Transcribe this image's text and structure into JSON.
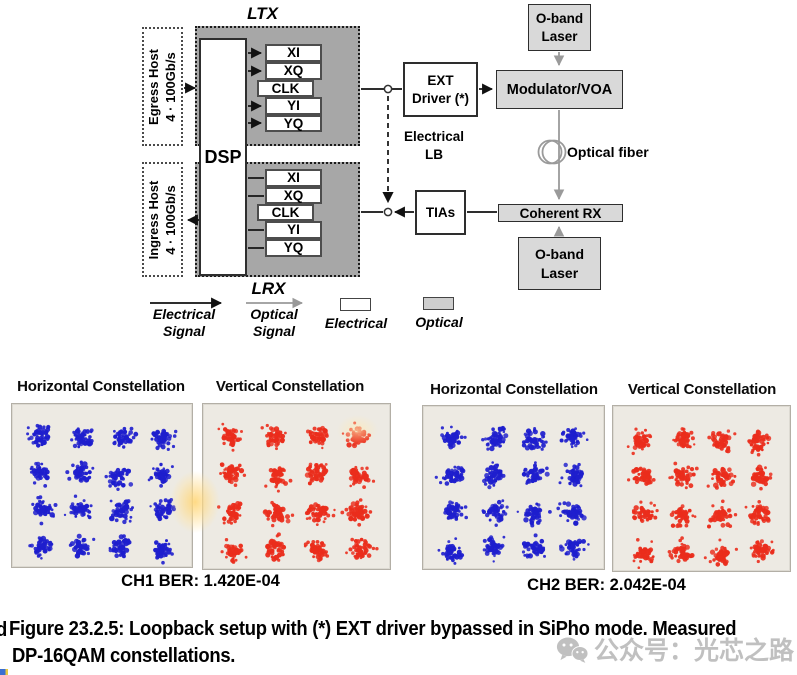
{
  "diagram": {
    "ltx_label": "LTX",
    "lrx_label": "LRX",
    "dsp_label": "DSP",
    "egress_host": "Egress Host\n4 · 100Gb/s",
    "ingress_host": "Ingress Host\n4 · 100Gb/s",
    "ltx_lanes": [
      "XI",
      "XQ",
      "CLK",
      "YI",
      "YQ"
    ],
    "lrx_lanes": [
      "XI",
      "XQ",
      "CLK",
      "YI",
      "YQ"
    ],
    "ext_driver": "EXT\nDriver (*)",
    "oband_top": "O-band\nLaser",
    "oband_bottom": "O-band\nLaser",
    "modulator": "Modulator/VOA",
    "coherent_rx": "Coherent RX",
    "tias": "TIAs",
    "electrical_lb": "Electrical\nLB",
    "optical_fiber": "Optical fiber",
    "colors": {
      "gray_zone": "#a7a7a7",
      "optical_box_fill": "#d9d9d9",
      "optical_line": "#9a9a9a",
      "electrical_line": "#111111"
    }
  },
  "legend": {
    "electrical_signal": "Electrical\nSignal",
    "optical_signal": "Optical\nSignal",
    "electrical": "Electrical",
    "optical": "Optical"
  },
  "constellations": {
    "grid_rows": 4,
    "grid_cols": 4,
    "modulation": "DP-16QAM",
    "groups": [
      {
        "title_h": "Horizontal Constellation",
        "title_v": "Vertical Constellation",
        "ber": "CH1 BER: 1.420E-04"
      },
      {
        "title_h": "Horizontal Constellation",
        "title_v": "Vertical Constellation",
        "ber": "CH2 BER: 2.042E-04"
      }
    ],
    "panels": [
      {
        "color": "#1e1ecd",
        "seed": 7
      },
      {
        "color": "#ea2d1c",
        "seed": 1013
      },
      {
        "color": "#1e1ecd",
        "seed": 2311
      },
      {
        "color": "#ea2d1c",
        "seed": 4099
      }
    ]
  },
  "caption": {
    "fragment": "d",
    "line1": "Figure 23.2.5: Loopback setup with (*) EXT driver bypassed in SiPho mode. Measured",
    "line2": "DP-16QAM constellations."
  },
  "watermark": {
    "text": "公众号：光芯之路"
  }
}
